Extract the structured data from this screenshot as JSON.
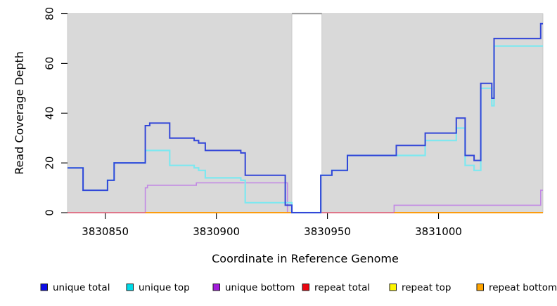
{
  "chart_data": {
    "type": "line",
    "subtype": "step-coverage",
    "title": "",
    "xlabel": "Coordinate in Reference Genome",
    "ylabel": "Read Coverage Depth",
    "x_domain": [
      3830833,
      3831047
    ],
    "y_domain": [
      0,
      80
    ],
    "x_ticks": [
      3830850,
      3830900,
      3830950,
      3831000
    ],
    "y_ticks": [
      0,
      20,
      40,
      60,
      80
    ],
    "grid": "off",
    "plot_background": "#d9d9d9",
    "masked_gap": {
      "start": 3830934,
      "end": 3830947.5
    },
    "gap_top_border_color": "#8a8a8a",
    "plot_top_border_color": "#c9c9c9",
    "series": [
      {
        "name": "repeat top",
        "color": "#ffee00",
        "width": 1.6,
        "segments": [
          [
            [
              3830833,
              0
            ],
            [
              3831047,
              0
            ]
          ]
        ]
      },
      {
        "name": "unique bottom",
        "color": "#c288e4",
        "width": 1.6,
        "segments": [
          [
            [
              3830833,
              0
            ],
            [
              3830868,
              10
            ],
            [
              3830869,
              11
            ],
            [
              3830891,
              12
            ],
            [
              3830932,
              0
            ],
            [
              3830980,
              3
            ],
            [
              3831046,
              9
            ],
            [
              3831047,
              9
            ]
          ]
        ]
      },
      {
        "name": "repeat total",
        "color": "#e0617f",
        "width": 1.6,
        "segments": [
          [
            [
              3830833,
              0
            ],
            [
              3831047,
              0
            ]
          ]
        ]
      },
      {
        "name": "repeat bottom",
        "color": "#ff9b00",
        "width": 1.8,
        "segments": [
          [
            [
              3830868,
              0
            ],
            [
              3830934,
              0
            ]
          ],
          [
            [
              3830980,
              0
            ],
            [
              3831047,
              0
            ]
          ]
        ]
      },
      {
        "name": "unique top",
        "color": "#7de8f0",
        "width": 2.2,
        "segments": [
          [
            [
              3830833,
              18
            ],
            [
              3830840,
              9
            ],
            [
              3830851,
              13
            ],
            [
              3830854,
              20
            ],
            [
              3830868,
              25
            ],
            [
              3830879,
              19
            ],
            [
              3830890,
              18
            ],
            [
              3830892,
              17
            ],
            [
              3830895,
              14
            ],
            [
              3830911,
              13
            ],
            [
              3830913,
              4
            ],
            [
              3830934,
              0
            ],
            [
              3830947,
              15
            ],
            [
              3830952,
              17
            ],
            [
              3830959,
              23
            ],
            [
              3830994,
              29
            ],
            [
              3831008,
              34
            ],
            [
              3831012,
              19
            ],
            [
              3831016,
              17
            ],
            [
              3831019,
              50
            ],
            [
              3831024,
              43
            ],
            [
              3831025,
              67
            ],
            [
              3831047,
              67
            ]
          ]
        ]
      },
      {
        "name": "unique total",
        "color": "#3346d8",
        "width": 2.0,
        "segments": [
          [
            [
              3830833,
              18
            ],
            [
              3830840,
              9
            ],
            [
              3830851,
              13
            ],
            [
              3830854,
              20
            ],
            [
              3830868,
              35
            ],
            [
              3830870,
              36
            ],
            [
              3830879,
              30
            ],
            [
              3830890,
              29
            ],
            [
              3830892,
              28
            ],
            [
              3830895,
              25
            ],
            [
              3830911,
              24
            ],
            [
              3830913,
              15
            ],
            [
              3830931,
              3
            ],
            [
              3830934,
              0
            ],
            [
              3830947,
              15
            ],
            [
              3830952,
              17
            ],
            [
              3830959,
              23
            ],
            [
              3830981,
              27
            ],
            [
              3830994,
              32
            ],
            [
              3831008,
              38
            ],
            [
              3831012,
              23
            ],
            [
              3831016,
              21
            ],
            [
              3831019,
              52
            ],
            [
              3831024,
              46
            ],
            [
              3831025,
              70
            ],
            [
              3831046,
              76
            ],
            [
              3831047,
              76
            ]
          ]
        ]
      }
    ],
    "legend": {
      "position": "bottom",
      "swatch_border_color": "#1a1a1a",
      "items": [
        {
          "label": "unique total",
          "color": "#0d0de8"
        },
        {
          "label": "unique top",
          "color": "#00dbe8"
        },
        {
          "label": "unique bottom",
          "color": "#a21ddb"
        },
        {
          "label": "repeat total",
          "color": "#ea0711"
        },
        {
          "label": "repeat top",
          "color": "#fdf500"
        },
        {
          "label": "repeat bottom",
          "color": "#ffa400"
        }
      ]
    }
  }
}
